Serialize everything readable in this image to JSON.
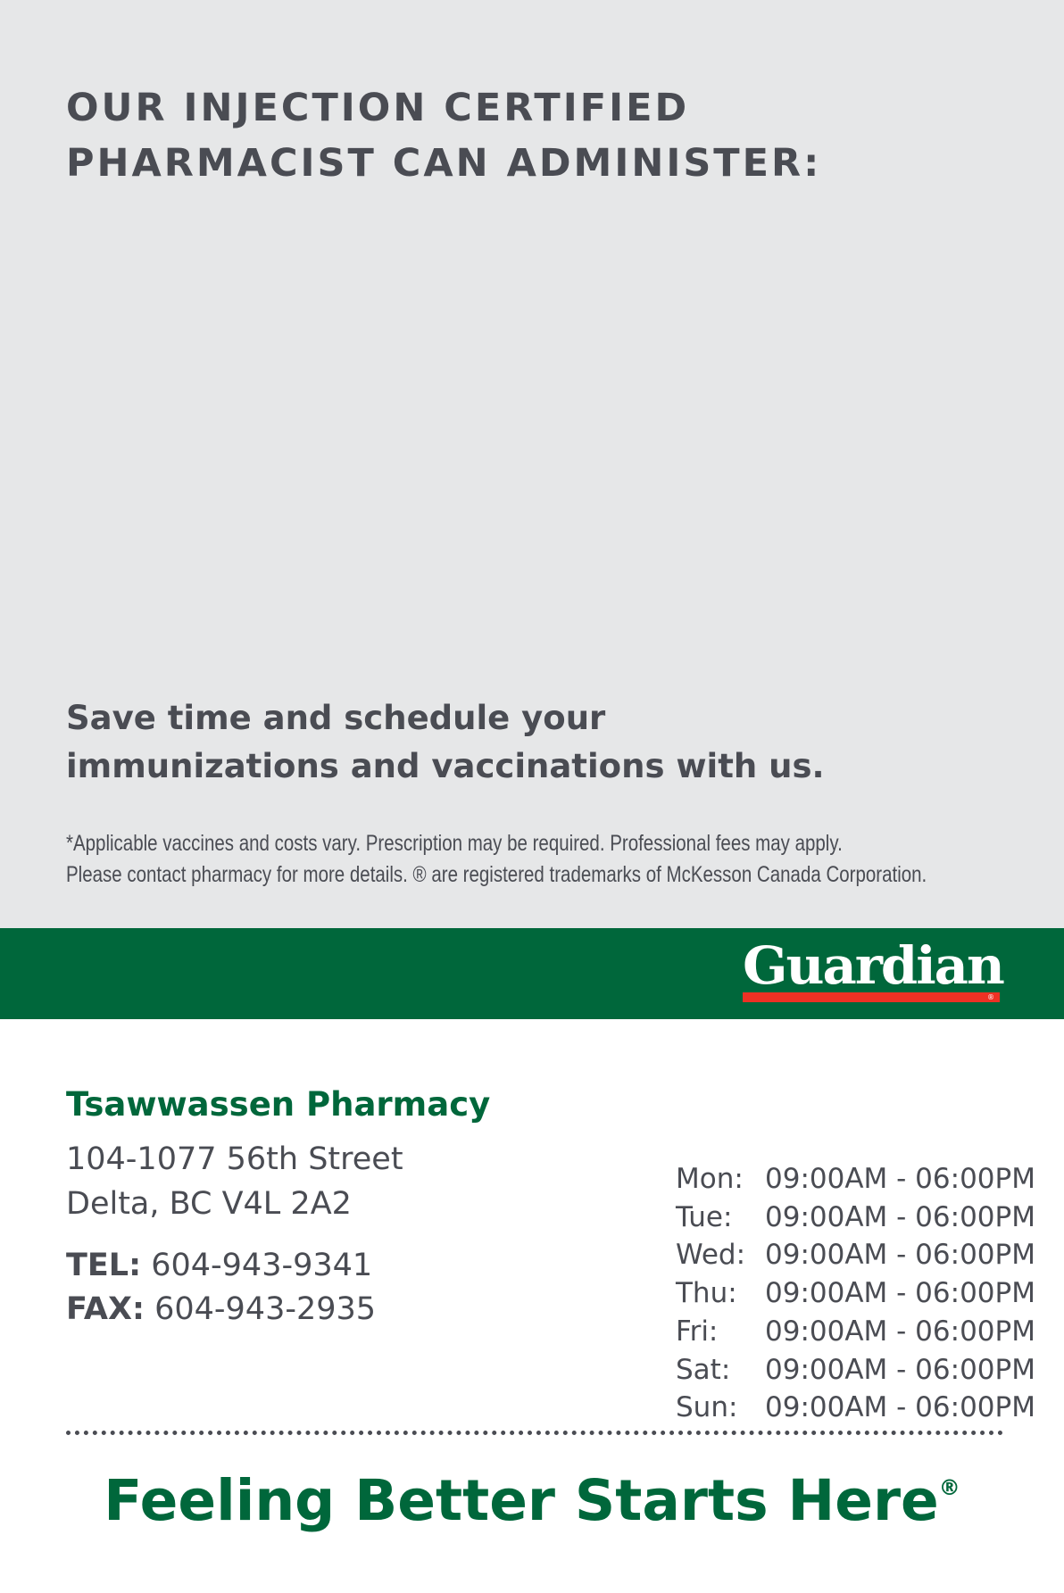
{
  "heading": {
    "line1": "OUR INJECTION CERTIFIED",
    "line2": "PHARMACIST CAN ADMINISTER:"
  },
  "promo": {
    "line1": "Save time and schedule your",
    "line2": "immunizations and vaccinations with us."
  },
  "disclaimer": {
    "line1": "*Applicable vaccines and costs vary. Prescription may be required. Professional fees may apply.",
    "line2": "Please contact pharmacy for more details. ® are registered trademarks of McKesson Canada Corporation."
  },
  "brand": {
    "logo_text": "Guardian",
    "logo_reg": "®",
    "green": "#00673b",
    "red": "#ee3124"
  },
  "pharmacy": {
    "name": "Tsawwassen Pharmacy",
    "address1": "104-1077 56th Street",
    "address2": "Delta, BC V4L 2A2",
    "tel_label": "TEL:",
    "tel": "604-943-9341",
    "fax_label": "FAX:",
    "fax": "604-943-2935"
  },
  "hours": [
    {
      "day": "Mon:",
      "time": "09:00AM - 06:00PM"
    },
    {
      "day": "Tue:",
      "time": "09:00AM - 06:00PM"
    },
    {
      "day": "Wed:",
      "time": "09:00AM - 06:00PM"
    },
    {
      "day": "Thu:",
      "time": "09:00AM - 06:00PM"
    },
    {
      "day": "Fri:",
      "time": "09:00AM - 06:00PM"
    },
    {
      "day": "Sat:",
      "time": "09:00AM - 06:00PM"
    },
    {
      "day": "Sun:",
      "time": "09:00AM - 06:00PM"
    }
  ],
  "slogan": {
    "text": "Feeling Better Starts Here",
    "reg": "®"
  }
}
